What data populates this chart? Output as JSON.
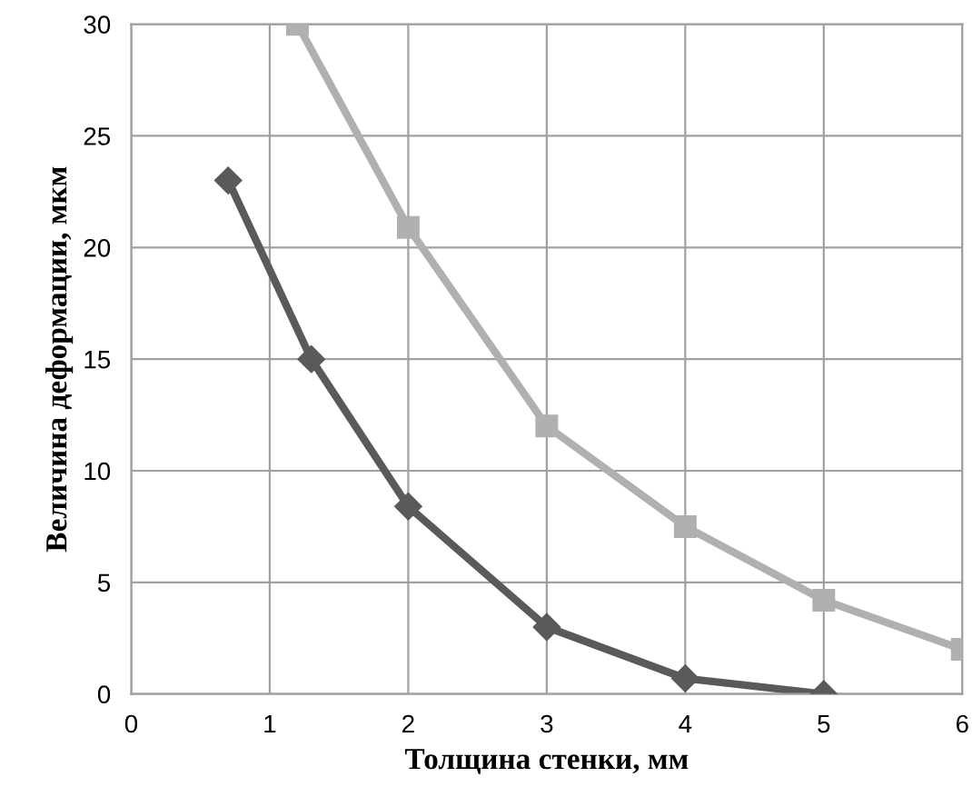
{
  "chart_data": {
    "type": "line",
    "xlabel": "Толщина стенки, мм",
    "ylabel": "Величина деформации, мкм",
    "xlim": [
      0,
      6
    ],
    "xticks": [
      0,
      1,
      2,
      3,
      4,
      5,
      6
    ],
    "ylim": [
      0,
      30
    ],
    "yticks": [
      0,
      5,
      10,
      15,
      20,
      25,
      30
    ],
    "grid": true,
    "series": [
      {
        "color": "#5a5a5a",
        "marker": "diamond",
        "x": [
          0.7,
          1.3,
          2,
          3,
          4,
          5
        ],
        "values": [
          23,
          15,
          8.4,
          3,
          0.7,
          0
        ]
      },
      {
        "color": "#b0b0b0",
        "marker": "square",
        "x": [
          1.2,
          2,
          3,
          4,
          5,
          6
        ],
        "values": [
          30,
          20.9,
          12,
          7.5,
          4.2,
          2
        ]
      }
    ]
  }
}
